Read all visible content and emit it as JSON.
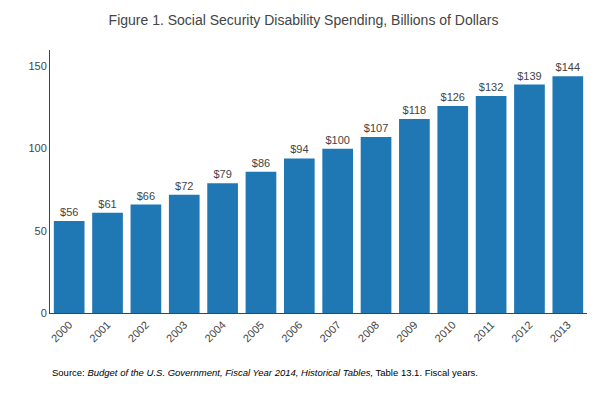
{
  "chart_data": {
    "type": "bar",
    "title": "Figure 1. Social Security Disability Spending, Billions of Dollars",
    "categories": [
      "2000",
      "2001",
      "2002",
      "2003",
      "2004",
      "2005",
      "2006",
      "2007",
      "2008",
      "2009",
      "2010",
      "2011",
      "2012",
      "2013"
    ],
    "values": [
      56,
      61,
      66,
      72,
      79,
      86,
      94,
      100,
      107,
      118,
      126,
      132,
      139,
      144
    ],
    "value_labels": [
      "$56",
      "$61",
      "$66",
      "$72",
      "$79",
      "$86",
      "$94",
      "$100",
      "$107",
      "$118",
      "$126",
      "$132",
      "$139",
      "$144"
    ],
    "data_labels": true,
    "ylim": [
      0,
      160
    ],
    "yticks": [
      0,
      50,
      100,
      150
    ],
    "grid": false,
    "annotations": [
      "Source: ",
      "Budget of the U.S. Government, Fiscal Year 2014, Historical Tables,",
      " Table 13.1. Fiscal years."
    ]
  }
}
